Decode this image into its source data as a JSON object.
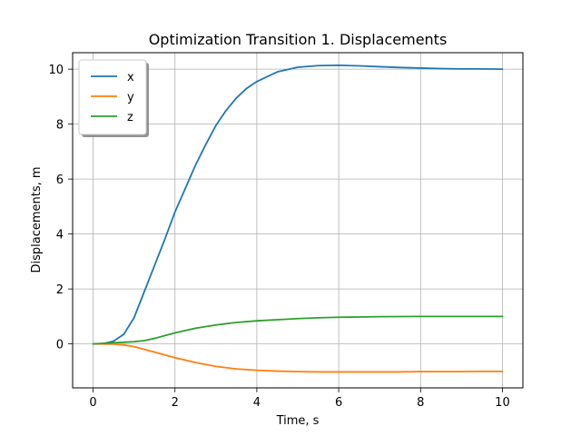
{
  "chart_data": {
    "type": "line",
    "title": "Optimization Transition 1. Displacements",
    "xlabel": "Time, s",
    "ylabel": "Displacements, m",
    "xlim": [
      -0.5,
      10.5
    ],
    "ylim": [
      -1.6,
      10.6
    ],
    "xticks": [
      0,
      2,
      4,
      6,
      8,
      10
    ],
    "yticks": [
      0,
      2,
      4,
      6,
      8,
      10
    ],
    "xtick_labels": [
      "0",
      "2",
      "4",
      "6",
      "8",
      "10"
    ],
    "ytick_labels": [
      "0",
      "2",
      "4",
      "6",
      "8",
      "10"
    ],
    "grid": true,
    "legend_position": "top-left",
    "series": [
      {
        "name": "x",
        "color": "#1f77b4",
        "x": [
          0,
          0.25,
          0.5,
          0.75,
          1,
          1.25,
          1.5,
          1.75,
          2,
          2.25,
          2.5,
          2.75,
          3,
          3.25,
          3.5,
          3.75,
          4,
          4.5,
          5,
          5.5,
          6,
          6.5,
          7,
          7.5,
          8,
          8.5,
          9,
          9.5,
          10
        ],
        "y": [
          0,
          0.01,
          0.1,
          0.35,
          0.95,
          1.9,
          2.85,
          3.8,
          4.8,
          5.65,
          6.5,
          7.25,
          7.95,
          8.5,
          8.95,
          9.3,
          9.55,
          9.9,
          10.07,
          10.13,
          10.14,
          10.12,
          10.09,
          10.06,
          10.04,
          10.02,
          10.01,
          10.01,
          10.0
        ]
      },
      {
        "name": "y",
        "color": "#ff7f0e",
        "x": [
          0,
          0.5,
          0.75,
          1,
          1.25,
          1.5,
          1.75,
          2,
          2.5,
          3,
          3.5,
          4,
          4.5,
          5,
          5.5,
          6,
          6.5,
          7,
          7.5,
          8,
          8.5,
          9,
          9.5,
          10
        ],
        "y": [
          0,
          -0.01,
          -0.04,
          -0.1,
          -0.2,
          -0.3,
          -0.4,
          -0.5,
          -0.68,
          -0.82,
          -0.91,
          -0.96,
          -0.99,
          -1.01,
          -1.02,
          -1.02,
          -1.02,
          -1.02,
          -1.02,
          -1.01,
          -1.01,
          -1.01,
          -1.0,
          -1.0
        ]
      },
      {
        "name": "z",
        "color": "#2ca02c",
        "x": [
          0,
          0.5,
          0.75,
          1,
          1.25,
          1.5,
          1.75,
          2,
          2.5,
          3,
          3.5,
          4,
          4.5,
          5,
          5.5,
          6,
          6.5,
          7,
          7.5,
          8,
          8.5,
          9,
          9.5,
          10
        ],
        "y": [
          0,
          0.04,
          0.06,
          0.08,
          0.12,
          0.2,
          0.3,
          0.4,
          0.57,
          0.69,
          0.78,
          0.84,
          0.88,
          0.92,
          0.95,
          0.97,
          0.98,
          0.99,
          0.995,
          1.0,
          1.0,
          1.0,
          1.0,
          1.0
        ]
      }
    ]
  }
}
